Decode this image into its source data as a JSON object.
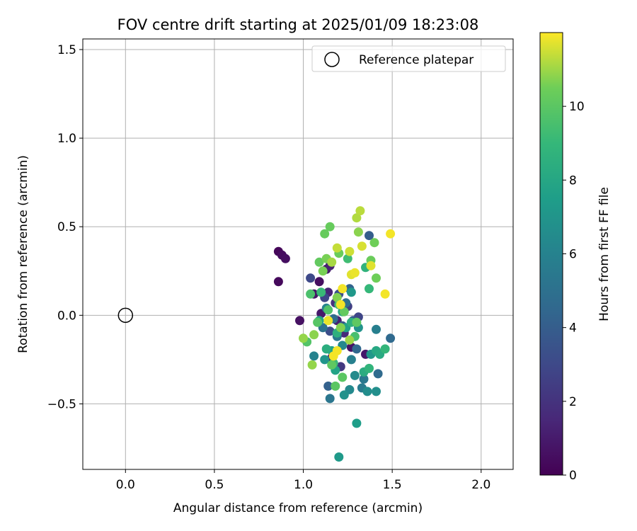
{
  "chart_data": {
    "type": "scatter",
    "title": "FOV centre drift starting at 2025/01/09 18:23:08",
    "xlabel": "Angular distance from reference (arcmin)",
    "ylabel": "Rotation from reference (arcmin)",
    "xlim": [
      -0.24,
      2.18
    ],
    "ylim": [
      -0.87,
      1.56
    ],
    "xticks": [
      0.0,
      0.5,
      1.0,
      1.5,
      2.0
    ],
    "xtick_labels": [
      "0.0",
      "0.5",
      "1.0",
      "1.5",
      "2.0"
    ],
    "yticks": [
      -0.5,
      0.0,
      0.5,
      1.0,
      1.5
    ],
    "ytick_labels": [
      "−0.5",
      "0.0",
      "0.5",
      "1.0",
      "1.5"
    ],
    "grid": true,
    "legend": {
      "placement": "top-right",
      "entries": [
        "Reference platepar"
      ]
    },
    "reference_point": {
      "x": 0.0,
      "y": 0.0
    },
    "colorbar": {
      "label": "Hours from first FF file",
      "min": 0,
      "max": 12,
      "colormap": "viridis",
      "ticks": [
        0,
        2,
        4,
        6,
        8,
        10
      ],
      "tick_labels": [
        "0",
        "2",
        "4",
        "6",
        "8",
        "10"
      ]
    },
    "points": [
      {
        "x": 0.86,
        "y": 0.36,
        "h": 0.2
      },
      {
        "x": 0.88,
        "y": 0.34,
        "h": 0.4
      },
      {
        "x": 0.9,
        "y": 0.32,
        "h": 0.5
      },
      {
        "x": 0.86,
        "y": 0.19,
        "h": 0.3
      },
      {
        "x": 0.98,
        "y": -0.03,
        "h": 0.6
      },
      {
        "x": 1.06,
        "y": 0.12,
        "h": 0.8
      },
      {
        "x": 1.09,
        "y": 0.19,
        "h": 0.5
      },
      {
        "x": 1.1,
        "y": 0.01,
        "h": 0.9
      },
      {
        "x": 1.13,
        "y": 0.26,
        "h": 1.0
      },
      {
        "x": 1.15,
        "y": 0.28,
        "h": 1.3
      },
      {
        "x": 1.14,
        "y": 0.13,
        "h": 1.4
      },
      {
        "x": 1.19,
        "y": -0.03,
        "h": 1.2
      },
      {
        "x": 1.23,
        "y": -0.1,
        "h": 1.6
      },
      {
        "x": 1.16,
        "y": -0.24,
        "h": 1.1
      },
      {
        "x": 1.27,
        "y": -0.18,
        "h": 0.7
      },
      {
        "x": 1.35,
        "y": -0.22,
        "h": 0.9
      },
      {
        "x": 1.18,
        "y": 0.07,
        "h": 2.0
      },
      {
        "x": 1.21,
        "y": -0.29,
        "h": 2.3
      },
      {
        "x": 1.25,
        "y": 0.05,
        "h": 2.5
      },
      {
        "x": 1.31,
        "y": -0.01,
        "h": 2.8
      },
      {
        "x": 1.12,
        "y": 0.1,
        "h": 2.9
      },
      {
        "x": 1.04,
        "y": 0.21,
        "h": 3.0
      },
      {
        "x": 1.15,
        "y": -0.09,
        "h": 3.2
      },
      {
        "x": 1.2,
        "y": 0.12,
        "h": 3.4
      },
      {
        "x": 1.28,
        "y": -0.03,
        "h": 3.6
      },
      {
        "x": 1.22,
        "y": -0.06,
        "h": 3.7
      },
      {
        "x": 1.37,
        "y": 0.45,
        "h": 4.0
      },
      {
        "x": 1.14,
        "y": -0.4,
        "h": 4.2
      },
      {
        "x": 1.26,
        "y": 0.15,
        "h": 4.3
      },
      {
        "x": 1.3,
        "y": -0.19,
        "h": 4.5
      },
      {
        "x": 1.49,
        "y": -0.13,
        "h": 4.6
      },
      {
        "x": 1.42,
        "y": -0.33,
        "h": 4.7
      },
      {
        "x": 1.17,
        "y": -0.02,
        "h": 4.8
      },
      {
        "x": 1.24,
        "y": 0.07,
        "h": 4.9
      },
      {
        "x": 1.11,
        "y": -0.07,
        "h": 5.1
      },
      {
        "x": 1.15,
        "y": -0.47,
        "h": 5.3
      },
      {
        "x": 1.34,
        "y": -0.36,
        "h": 5.4
      },
      {
        "x": 1.19,
        "y": -0.12,
        "h": 5.5
      },
      {
        "x": 1.33,
        "y": -0.41,
        "h": 5.6
      },
      {
        "x": 1.41,
        "y": -0.08,
        "h": 5.8
      },
      {
        "x": 1.27,
        "y": -0.25,
        "h": 5.9
      },
      {
        "x": 1.06,
        "y": -0.23,
        "h": 6.0
      },
      {
        "x": 1.13,
        "y": 0.04,
        "h": 6.1
      },
      {
        "x": 1.22,
        "y": -0.17,
        "h": 6.3
      },
      {
        "x": 1.26,
        "y": -0.42,
        "h": 6.4
      },
      {
        "x": 1.29,
        "y": -0.34,
        "h": 6.5
      },
      {
        "x": 1.36,
        "y": -0.43,
        "h": 6.6
      },
      {
        "x": 1.41,
        "y": -0.43,
        "h": 6.7
      },
      {
        "x": 1.23,
        "y": -0.45,
        "h": 6.8
      },
      {
        "x": 1.31,
        "y": -0.07,
        "h": 6.9
      },
      {
        "x": 1.12,
        "y": -0.25,
        "h": 7.0
      },
      {
        "x": 1.38,
        "y": -0.22,
        "h": 7.1
      },
      {
        "x": 1.27,
        "y": 0.13,
        "h": 7.2
      },
      {
        "x": 1.2,
        "y": -0.8,
        "h": 7.3
      },
      {
        "x": 1.3,
        "y": -0.61,
        "h": 7.5
      },
      {
        "x": 1.16,
        "y": -0.2,
        "h": 7.6
      },
      {
        "x": 1.24,
        "y": -0.07,
        "h": 7.7
      },
      {
        "x": 1.18,
        "y": -0.31,
        "h": 7.8
      },
      {
        "x": 1.09,
        "y": -0.03,
        "h": 7.9
      },
      {
        "x": 1.22,
        "y": 0.02,
        "h": 8.0
      },
      {
        "x": 1.41,
        "y": -0.2,
        "h": 8.1
      },
      {
        "x": 1.43,
        "y": -0.22,
        "h": 8.2
      },
      {
        "x": 1.34,
        "y": -0.32,
        "h": 8.3
      },
      {
        "x": 1.13,
        "y": -0.19,
        "h": 8.4
      },
      {
        "x": 1.19,
        "y": -0.1,
        "h": 8.5
      },
      {
        "x": 1.27,
        "y": -0.04,
        "h": 8.6
      },
      {
        "x": 1.35,
        "y": 0.27,
        "h": 8.7
      },
      {
        "x": 1.37,
        "y": -0.3,
        "h": 8.8
      },
      {
        "x": 1.46,
        "y": -0.19,
        "h": 8.9
      },
      {
        "x": 1.37,
        "y": 0.15,
        "h": 9.0
      },
      {
        "x": 1.1,
        "y": 0.13,
        "h": 9.1
      },
      {
        "x": 1.17,
        "y": -0.27,
        "h": 9.2
      },
      {
        "x": 1.25,
        "y": 0.32,
        "h": 9.3
      },
      {
        "x": 1.2,
        "y": 0.06,
        "h": 9.4
      },
      {
        "x": 1.29,
        "y": -0.12,
        "h": 9.5
      },
      {
        "x": 1.04,
        "y": 0.12,
        "h": 9.6
      },
      {
        "x": 1.14,
        "y": 0.03,
        "h": 9.7
      },
      {
        "x": 1.02,
        "y": -0.15,
        "h": 9.8
      },
      {
        "x": 1.08,
        "y": -0.04,
        "h": 9.9
      },
      {
        "x": 1.22,
        "y": -0.35,
        "h": 10.0
      },
      {
        "x": 1.18,
        "y": -0.4,
        "h": 10.0
      },
      {
        "x": 1.16,
        "y": -0.28,
        "h": 10.1
      },
      {
        "x": 1.3,
        "y": -0.04,
        "h": 10.1
      },
      {
        "x": 1.23,
        "y": 0.02,
        "h": 10.2
      },
      {
        "x": 1.09,
        "y": 0.3,
        "h": 10.2
      },
      {
        "x": 1.12,
        "y": 0.46,
        "h": 10.3
      },
      {
        "x": 1.15,
        "y": 0.5,
        "h": 10.3
      },
      {
        "x": 1.2,
        "y": 0.35,
        "h": 10.4
      },
      {
        "x": 1.38,
        "y": 0.31,
        "h": 10.4
      },
      {
        "x": 1.4,
        "y": 0.41,
        "h": 10.5
      },
      {
        "x": 1.41,
        "y": 0.21,
        "h": 10.5
      },
      {
        "x": 1.11,
        "y": 0.25,
        "h": 10.6
      },
      {
        "x": 1.13,
        "y": 0.32,
        "h": 10.6
      },
      {
        "x": 1.19,
        "y": 0.1,
        "h": 10.7
      },
      {
        "x": 1.21,
        "y": -0.07,
        "h": 10.7
      },
      {
        "x": 1.31,
        "y": 0.47,
        "h": 10.8
      },
      {
        "x": 1.06,
        "y": -0.11,
        "h": 10.8
      },
      {
        "x": 1.0,
        "y": -0.13,
        "h": 10.9
      },
      {
        "x": 1.05,
        "y": -0.28,
        "h": 10.9
      },
      {
        "x": 1.26,
        "y": -0.14,
        "h": 11.0
      },
      {
        "x": 1.16,
        "y": 0.3,
        "h": 11.1
      },
      {
        "x": 1.3,
        "y": 0.55,
        "h": 11.2
      },
      {
        "x": 1.32,
        "y": 0.59,
        "h": 11.3
      },
      {
        "x": 1.19,
        "y": 0.38,
        "h": 11.4
      },
      {
        "x": 1.26,
        "y": 0.36,
        "h": 11.5
      },
      {
        "x": 1.33,
        "y": 0.39,
        "h": 11.6
      },
      {
        "x": 1.38,
        "y": 0.28,
        "h": 11.7
      },
      {
        "x": 1.27,
        "y": 0.23,
        "h": 11.7
      },
      {
        "x": 1.29,
        "y": 0.24,
        "h": 11.8
      },
      {
        "x": 1.14,
        "y": -0.03,
        "h": 11.8
      },
      {
        "x": 1.49,
        "y": 0.46,
        "h": 11.9
      },
      {
        "x": 1.46,
        "y": 0.12,
        "h": 11.9
      },
      {
        "x": 1.22,
        "y": 0.15,
        "h": 11.9
      },
      {
        "x": 1.19,
        "y": -0.2,
        "h": 11.9
      },
      {
        "x": 1.17,
        "y": -0.23,
        "h": 11.9
      },
      {
        "x": 1.21,
        "y": 0.06,
        "h": 11.9
      }
    ]
  }
}
